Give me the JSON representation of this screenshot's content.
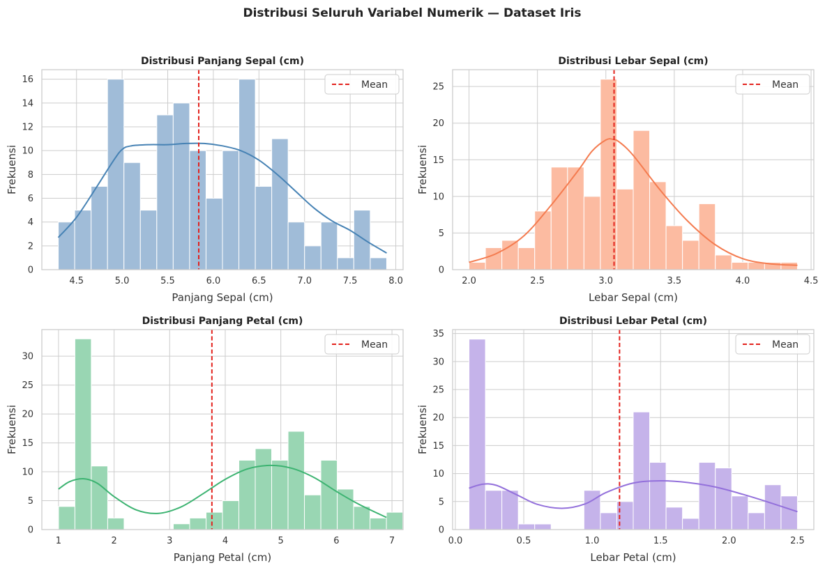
{
  "figure": {
    "suptitle": "Distribusi Seluruh Variabel Numerik — Dataset Iris"
  },
  "colors": {
    "mean_line": "#e3211c",
    "grid": "#cccccc",
    "frame": "#cccccc"
  },
  "chart_data": [
    {
      "type": "histogram",
      "title": "Distribusi Panjang Sepal (cm)",
      "xlabel": "Panjang Sepal (cm)",
      "ylabel": "Frekuensi",
      "xlim": [
        4.12,
        8.08
      ],
      "ylim": [
        0,
        16.8
      ],
      "xticks": [
        4.5,
        5.0,
        5.5,
        6.0,
        6.5,
        7.0,
        7.5,
        8.0
      ],
      "xtick_labels": [
        "4.5",
        "5.0",
        "5.5",
        "6.0",
        "6.5",
        "7.0",
        "7.5",
        "8.0"
      ],
      "yticks": [
        0,
        2,
        4,
        6,
        8,
        10,
        12,
        14,
        16
      ],
      "ytick_labels": [
        "0",
        "2",
        "4",
        "6",
        "8",
        "10",
        "12",
        "14",
        "16"
      ],
      "bin_start": 4.3,
      "bin_width": 0.18,
      "counts": [
        4,
        5,
        7,
        16,
        9,
        5,
        13,
        14,
        10,
        6,
        10,
        16,
        7,
        11,
        4,
        2,
        4,
        1,
        5,
        1
      ],
      "kde_x": [
        4.3,
        4.5,
        4.7,
        4.9,
        5.0,
        5.1,
        5.3,
        5.5,
        5.7,
        5.9,
        6.1,
        6.3,
        6.5,
        6.7,
        6.9,
        7.1,
        7.3,
        7.5,
        7.7,
        7.9
      ],
      "kde_y": [
        2.7,
        4.4,
        6.7,
        9.1,
        10.1,
        10.4,
        10.5,
        10.5,
        10.6,
        10.6,
        10.4,
        10.0,
        9.2,
        8.0,
        6.6,
        5.2,
        4.1,
        3.3,
        2.3,
        1.4
      ],
      "mean": 5.84,
      "legend": "Mean",
      "bar_color": "#a0bcd8",
      "kde_color": "#4682b4"
    },
    {
      "type": "histogram",
      "title": "Distribusi Lebar Sepal (cm)",
      "xlabel": "Lebar Sepal (cm)",
      "ylabel": "Frekuensi",
      "xlim": [
        1.88,
        4.52
      ],
      "ylim": [
        0,
        27.3
      ],
      "xticks": [
        2.0,
        2.5,
        3.0,
        3.5,
        4.0,
        4.5
      ],
      "xtick_labels": [
        "2.0",
        "2.5",
        "3.0",
        "3.5",
        "4.0",
        "4.5"
      ],
      "yticks": [
        0,
        5,
        10,
        15,
        20,
        25
      ],
      "ytick_labels": [
        "0",
        "5",
        "10",
        "15",
        "20",
        "25"
      ],
      "bin_start": 2.0,
      "bin_width": 0.12,
      "counts": [
        1,
        3,
        4,
        3,
        8,
        14,
        14,
        10,
        26,
        11,
        19,
        12,
        6,
        4,
        9,
        2,
        1,
        1,
        1,
        1
      ],
      "kde_x": [
        2.0,
        2.2,
        2.4,
        2.6,
        2.8,
        2.9,
        3.0,
        3.05,
        3.1,
        3.2,
        3.4,
        3.6,
        3.8,
        4.0,
        4.2,
        4.4
      ],
      "kde_y": [
        1.0,
        2.2,
        4.6,
        8.8,
        13.6,
        16.2,
        17.7,
        17.8,
        17.4,
        15.6,
        10.8,
        6.6,
        3.4,
        1.5,
        0.8,
        0.6
      ],
      "mean": 3.06,
      "legend": "Mean",
      "bar_color": "#fcbba1",
      "kde_color": "#f47b4f"
    },
    {
      "type": "histogram",
      "title": "Distribusi Panjang Petal (cm)",
      "xlabel": "Panjang Petal (cm)",
      "ylabel": "Frekuensi",
      "xlim": [
        0.7,
        7.2
      ],
      "ylim": [
        0,
        34.6
      ],
      "xticks": [
        1,
        2,
        3,
        4,
        5,
        6,
        7
      ],
      "xtick_labels": [
        "1",
        "2",
        "3",
        "4",
        "5",
        "6",
        "7"
      ],
      "yticks": [
        0,
        5,
        10,
        15,
        20,
        25,
        30
      ],
      "ytick_labels": [
        "0",
        "5",
        "10",
        "15",
        "20",
        "25",
        "30"
      ],
      "bin_start": 1.0,
      "bin_width": 0.295,
      "counts": [
        4,
        33,
        11,
        2,
        0,
        0,
        0,
        1,
        2,
        3,
        5,
        12,
        14,
        12,
        17,
        6,
        12,
        7,
        4,
        2,
        3
      ],
      "kde_x": [
        1.0,
        1.2,
        1.45,
        1.7,
        2.0,
        2.4,
        2.8,
        3.2,
        3.6,
        4.0,
        4.4,
        4.8,
        5.2,
        5.6,
        6.0,
        6.4,
        6.9
      ],
      "kde_y": [
        7.0,
        8.3,
        8.8,
        8.0,
        5.7,
        3.4,
        2.8,
        3.9,
        6.2,
        8.7,
        10.5,
        11.1,
        10.6,
        9.0,
        6.6,
        4.4,
        2.1
      ],
      "mean": 3.76,
      "legend": "Mean",
      "bar_color": "#99d6b3",
      "kde_color": "#3cb371"
    },
    {
      "type": "histogram",
      "title": "Distribusi Lebar Petal (cm)",
      "xlabel": "Lebar Petal (cm)",
      "ylabel": "Frekuensi",
      "xlim": [
        -0.02,
        2.62
      ],
      "ylim": [
        0,
        35.7
      ],
      "xticks": [
        0.0,
        0.5,
        1.0,
        1.5,
        2.0,
        2.5
      ],
      "xtick_labels": [
        "0.0",
        "0.5",
        "1.0",
        "1.5",
        "2.0",
        "2.5"
      ],
      "yticks": [
        0,
        5,
        10,
        15,
        20,
        25,
        30,
        35
      ],
      "ytick_labels": [
        "0",
        "5",
        "10",
        "15",
        "20",
        "25",
        "30",
        "35"
      ],
      "bin_start": 0.1,
      "bin_width": 0.12,
      "counts": [
        34,
        7,
        7,
        1,
        1,
        0,
        0,
        7,
        3,
        5,
        21,
        12,
        4,
        2,
        12,
        11,
        6,
        3,
        8,
        6
      ],
      "kde_x": [
        0.1,
        0.2,
        0.3,
        0.45,
        0.6,
        0.78,
        0.95,
        1.1,
        1.3,
        1.5,
        1.7,
        1.9,
        2.1,
        2.3,
        2.5
      ],
      "kde_y": [
        7.4,
        8.1,
        7.9,
        6.2,
        4.5,
        3.8,
        4.6,
        6.6,
        8.3,
        8.7,
        8.4,
        7.6,
        6.3,
        4.8,
        3.2
      ],
      "mean": 1.2,
      "legend": "Mean",
      "bar_color": "#c5b3ea",
      "kde_color": "#9370db"
    }
  ]
}
